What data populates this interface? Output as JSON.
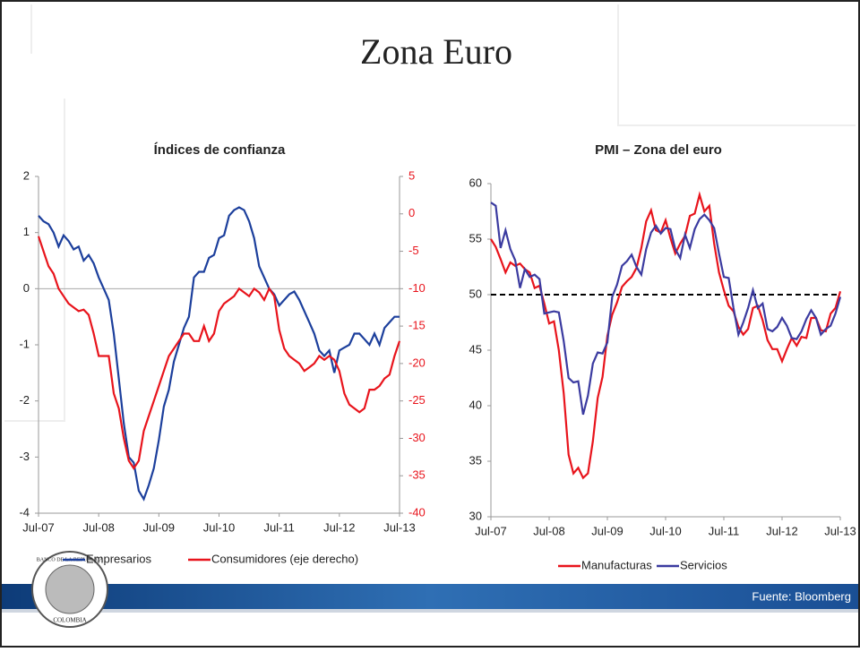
{
  "slide_title": "Zona Euro",
  "footer_source": "Fuente: Bloomberg",
  "logo": {
    "top": "BANCO DE LA REPUBLICA",
    "bottom": "COLOMBIA"
  },
  "chart_data": [
    {
      "type": "line",
      "title": "Índices de confianza",
      "categories": [
        "Jul-07",
        null,
        null,
        null,
        null,
        null,
        null,
        null,
        null,
        null,
        null,
        null,
        "Jul-08",
        null,
        null,
        null,
        null,
        null,
        null,
        null,
        null,
        null,
        null,
        null,
        "Jul-09",
        null,
        null,
        null,
        null,
        null,
        null,
        null,
        null,
        null,
        null,
        null,
        "Jul-10",
        null,
        null,
        null,
        null,
        null,
        null,
        null,
        null,
        null,
        null,
        null,
        "Jul-11",
        null,
        null,
        null,
        null,
        null,
        null,
        null,
        null,
        null,
        null,
        null,
        "Jul-12",
        null,
        null,
        null,
        null,
        null,
        null,
        null,
        null,
        null,
        null,
        null,
        "Jul-13"
      ],
      "ylim": [
        -4,
        2
      ],
      "yticks": [
        -4,
        -3,
        -2,
        -1,
        0,
        1,
        2
      ],
      "y2lim": [
        -40,
        5
      ],
      "y2ticks": [
        -40,
        -35,
        -30,
        -25,
        -20,
        -15,
        -10,
        -5,
        0,
        5
      ],
      "y2color": "#e8141c",
      "legend": "bottom",
      "series": [
        {
          "name": "Empresarios",
          "color": "#1c3f9c",
          "values": [
            1.3,
            1.2,
            1.15,
            1.0,
            0.75,
            0.95,
            0.85,
            0.7,
            0.75,
            0.5,
            0.6,
            0.45,
            0.2,
            0.0,
            -0.2,
            -0.8,
            -1.6,
            -2.4,
            -3.0,
            -3.1,
            -3.6,
            -3.75,
            -3.5,
            -3.2,
            -2.7,
            -2.1,
            -1.8,
            -1.3,
            -1.0,
            -0.7,
            -0.5,
            0.2,
            0.3,
            0.3,
            0.55,
            0.6,
            0.9,
            0.95,
            1.3,
            1.4,
            1.45,
            1.4,
            1.2,
            0.9,
            0.4,
            0.2,
            0.0,
            -0.1,
            -0.3,
            -0.2,
            -0.1,
            -0.05,
            -0.2,
            -0.4,
            -0.6,
            -0.8,
            -1.1,
            -1.2,
            -1.1,
            -1.5,
            -1.1,
            -1.05,
            -1.0,
            -0.8,
            -0.8,
            -0.9,
            -1.0,
            -0.8,
            -1.0,
            -0.7,
            -0.6,
            -0.5,
            -0.5
          ]
        },
        {
          "name": "Consumidores (eje derecho)",
          "color": "#e8141c",
          "axis": "y2",
          "values": [
            -3,
            -5,
            -7,
            -8,
            -10,
            -11,
            -12,
            -12.5,
            -13,
            -12.8,
            -13.5,
            -16,
            -19,
            -19,
            -19,
            -24,
            -26,
            -30,
            -33,
            -34,
            -33,
            -29,
            -27,
            -25,
            -23,
            -21,
            -19,
            -18,
            -17,
            -16,
            -16,
            -17,
            -17,
            -15,
            -17,
            -16,
            -13,
            -12,
            -11.5,
            -11,
            -10,
            -10.5,
            -11,
            -10,
            -10.5,
            -11.5,
            -10,
            -11,
            -15.5,
            -18,
            -19,
            -19.5,
            -20,
            -21,
            -20.5,
            -20,
            -19,
            -19.5,
            -19,
            -19.5,
            -21,
            -24,
            -25.5,
            -26,
            -26.5,
            -26,
            -23.5,
            -23.5,
            -23,
            -22,
            -21.5,
            -19,
            -17
          ]
        }
      ]
    },
    {
      "type": "line",
      "title": "PMI – Zona del euro",
      "categories": [
        "Jul-07",
        null,
        null,
        null,
        null,
        null,
        null,
        null,
        null,
        null,
        null,
        null,
        "Jul-08",
        null,
        null,
        null,
        null,
        null,
        null,
        null,
        null,
        null,
        null,
        null,
        "Jul-09",
        null,
        null,
        null,
        null,
        null,
        null,
        null,
        null,
        null,
        null,
        null,
        "Jul-10",
        null,
        null,
        null,
        null,
        null,
        null,
        null,
        null,
        null,
        null,
        null,
        "Jul-11",
        null,
        null,
        null,
        null,
        null,
        null,
        null,
        null,
        null,
        null,
        null,
        "Jul-12",
        null,
        null,
        null,
        null,
        null,
        null,
        null,
        null,
        null,
        null,
        null,
        "Jul-13"
      ],
      "ylim": [
        30,
        60
      ],
      "yticks": [
        30,
        35,
        40,
        45,
        50,
        55,
        60
      ],
      "hline": 50,
      "legend": "bottom",
      "series": [
        {
          "name": "Manufacturas",
          "color": "#e8141c",
          "values": [
            55.0,
            54.3,
            53.2,
            52.0,
            52.9,
            52.6,
            52.8,
            52.3,
            52.0,
            50.6,
            50.8,
            49.2,
            47.4,
            47.6,
            45.0,
            41.1,
            35.6,
            33.9,
            34.4,
            33.5,
            33.9,
            36.8,
            40.7,
            42.6,
            46.3,
            48.2,
            49.3,
            50.7,
            51.2,
            51.6,
            52.4,
            54.2,
            56.6,
            57.6,
            55.8,
            55.6,
            56.7,
            55.1,
            53.7,
            54.6,
            55.3,
            57.1,
            57.3,
            59.0,
            57.5,
            58.0,
            54.6,
            52.0,
            50.4,
            49.0,
            48.5,
            47.1,
            46.4,
            46.9,
            48.8,
            49.0,
            47.7,
            45.9,
            45.1,
            45.1,
            44.0,
            45.1,
            46.1,
            45.4,
            46.2,
            46.1,
            47.9,
            47.9,
            46.8,
            46.7,
            48.3,
            48.8,
            50.3
          ]
        },
        {
          "name": "Servicios",
          "color": "#3b3ba0",
          "values": [
            58.3,
            58.0,
            54.2,
            55.8,
            54.1,
            53.1,
            50.6,
            52.3,
            51.6,
            51.8,
            51.4,
            48.3,
            48.4,
            48.5,
            48.4,
            45.8,
            42.5,
            42.1,
            42.2,
            39.2,
            40.9,
            43.8,
            44.8,
            44.7,
            45.7,
            49.8,
            50.9,
            52.6,
            53.0,
            53.6,
            52.5,
            51.8,
            54.1,
            55.6,
            56.2,
            55.5,
            56.0,
            55.9,
            54.1,
            53.3,
            55.4,
            54.2,
            55.9,
            56.8,
            57.2,
            56.7,
            56.0,
            53.7,
            51.6,
            51.5,
            48.8,
            46.4,
            47.5,
            48.8,
            50.4,
            48.8,
            49.2,
            46.9,
            46.7,
            47.1,
            47.9,
            47.2,
            46.1,
            46.0,
            46.7,
            47.8,
            48.6,
            47.9,
            46.4,
            46.9,
            47.2,
            48.3,
            49.8
          ]
        }
      ]
    }
  ]
}
